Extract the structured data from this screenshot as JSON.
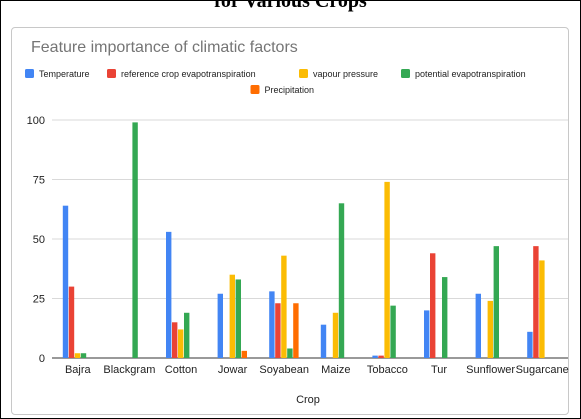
{
  "page": {
    "heading": "for Various Crops"
  },
  "colors": {
    "Temperature": "#4285f4",
    "reference crop evapotranspiration": "#ea4335",
    "vapour pressure": "#fbbc04",
    "potential evapotranspiration": "#34a853",
    "Precipitation": "#ff6d01"
  },
  "chart_data": {
    "type": "bar",
    "title": "Feature importance of climatic factors",
    "xlabel": "Crop",
    "ylabel": "",
    "ylim": [
      0,
      100
    ],
    "yticks": [
      0,
      25,
      50,
      75,
      100
    ],
    "grid": true,
    "legend": "top",
    "categories": [
      "Bajra",
      "Blackgram",
      "Cotton",
      "Jowar",
      "Soyabean",
      "Maize",
      "Tobacco",
      "Tur",
      "Sunflower",
      "Sugarcane"
    ],
    "series": [
      {
        "name": "Temperature",
        "values": [
          64,
          0,
          53,
          27,
          28,
          14,
          1,
          20,
          27,
          11
        ]
      },
      {
        "name": "reference crop evapotranspiration",
        "values": [
          30,
          0,
          15,
          0,
          23,
          0,
          1,
          44,
          0,
          47
        ]
      },
      {
        "name": "vapour pressure",
        "values": [
          2,
          0,
          12,
          35,
          43,
          19,
          74,
          0,
          24,
          41
        ]
      },
      {
        "name": "potential evapotranspiration",
        "values": [
          2,
          99,
          19,
          33,
          4,
          65,
          22,
          34,
          47,
          0
        ]
      },
      {
        "name": "Precipitation",
        "values": [
          0,
          0,
          0,
          3,
          23,
          0,
          0,
          0,
          0,
          0
        ]
      }
    ]
  }
}
